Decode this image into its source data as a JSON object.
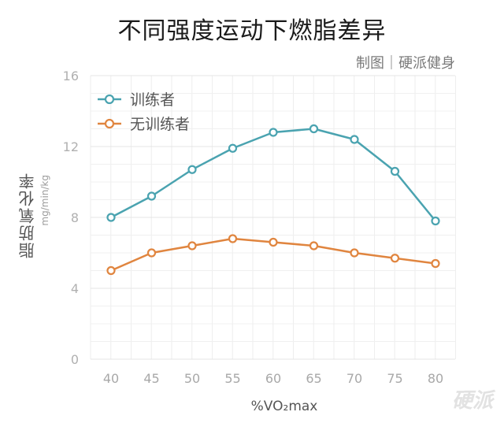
{
  "chart_data": {
    "type": "line",
    "title": "不同强度运动下燃脂差异",
    "credit": "制图｜硬派健身",
    "xlabel": "%VO₂max",
    "ylabel": "脂肪氧化率",
    "ylabel_unit": "mg/min/kg",
    "categories": [
      "40",
      "45",
      "50",
      "55",
      "60",
      "65",
      "70",
      "75",
      "80"
    ],
    "x": [
      40,
      45,
      50,
      55,
      60,
      65,
      70,
      75,
      80
    ],
    "ylim": [
      0,
      16
    ],
    "yticks": [
      "0",
      "4",
      "8",
      "12",
      "16"
    ],
    "ytick_values": [
      0,
      4,
      8,
      12,
      16
    ],
    "grid": true,
    "legend_position": "top-left",
    "series": [
      {
        "name": "训练者",
        "color": "#4aa3b0",
        "values": [
          8.0,
          9.2,
          10.7,
          11.9,
          12.8,
          13.0,
          12.4,
          10.6,
          7.8
        ]
      },
      {
        "name": "无训练者",
        "color": "#e0853f",
        "values": [
          5.0,
          6.0,
          6.4,
          6.8,
          6.6,
          6.4,
          6.0,
          5.7,
          5.4
        ]
      }
    ]
  },
  "watermark": "硬派"
}
